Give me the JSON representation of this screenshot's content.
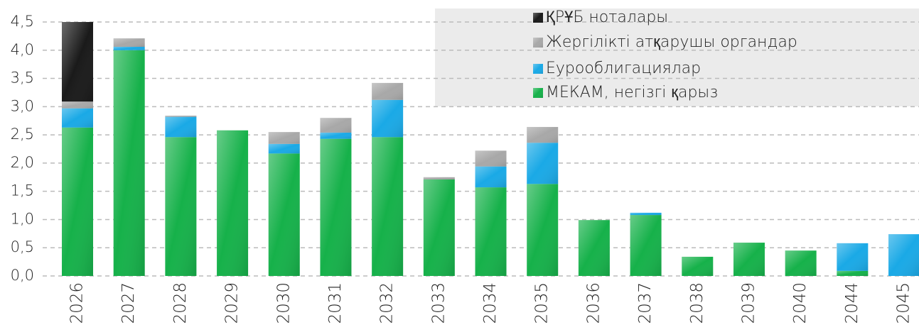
{
  "chart_data": {
    "type": "stacked_bar",
    "categories": [
      "2026",
      "2027",
      "2028",
      "2029",
      "2030",
      "2031",
      "2032",
      "2033",
      "2034",
      "2035",
      "2036",
      "2037",
      "2038",
      "2039",
      "2040",
      "2044",
      "2045"
    ],
    "series": [
      {
        "name": "МЕКАМ, негізгі қарыз",
        "color": "#16b14a",
        "values": [
          2.63,
          4.0,
          2.46,
          2.58,
          2.17,
          2.43,
          2.46,
          1.71,
          1.57,
          1.63,
          0.99,
          1.08,
          0.34,
          0.59,
          0.45,
          0.09,
          0
        ]
      },
      {
        "name": "Еурооблигациялар",
        "color": "#1aa9e6",
        "values": [
          0.34,
          0.06,
          0.36,
          0,
          0.17,
          0.11,
          0.66,
          0,
          0.37,
          0.73,
          0,
          0.04,
          0,
          0,
          0,
          0.49,
          0.74
        ]
      },
      {
        "name": "Жергілікті атқарушы органдар",
        "color": "#a8a8a8",
        "values": [
          0.12,
          0.15,
          0.02,
          0,
          0.21,
          0.26,
          0.3,
          0.04,
          0.28,
          0.28,
          0,
          0,
          0,
          0,
          0,
          0,
          0
        ]
      },
      {
        "name": "ҚРҰБ ноталары",
        "color": "#1a1a1a",
        "values": [
          1.41,
          0,
          0,
          0,
          0,
          0,
          0,
          0,
          0,
          0,
          0,
          0,
          0,
          0,
          0,
          0,
          0
        ]
      }
    ],
    "ylim": [
      0,
      4.5
    ],
    "yticks": [
      {
        "value": 0,
        "label": "0,0"
      },
      {
        "value": 0.5,
        "label": "0,5"
      },
      {
        "value": 1,
        "label": "1,0"
      },
      {
        "value": 1.5,
        "label": "1,5"
      },
      {
        "value": 2,
        "label": "2,0"
      },
      {
        "value": 2.5,
        "label": "2,5"
      },
      {
        "value": 3,
        "label": "3,0"
      },
      {
        "value": 3.5,
        "label": "3,5"
      },
      {
        "value": 4,
        "label": "4,0"
      },
      {
        "value": 4.5,
        "label": "4,5"
      }
    ],
    "grid": true
  }
}
